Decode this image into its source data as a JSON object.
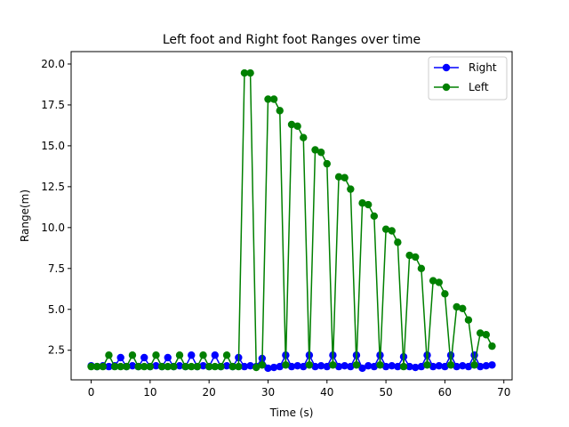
{
  "chart_data": {
    "type": "line",
    "title": "Left foot and Right foot Ranges over time",
    "xlabel": "Time (s)",
    "ylabel": "Range(m)",
    "xlim": [
      -3.4,
      71.4
    ],
    "ylim": [
      0.69,
      20.76
    ],
    "xticks": [
      0,
      10,
      20,
      30,
      40,
      50,
      60,
      70
    ],
    "yticks": [
      2.5,
      5.0,
      7.5,
      10.0,
      12.5,
      15.0,
      17.5,
      20.0
    ],
    "xtick_labels": [
      "0",
      "10",
      "20",
      "30",
      "40",
      "50",
      "60",
      "70"
    ],
    "ytick_labels": [
      "2.5",
      "5.0",
      "7.5",
      "10.0",
      "12.5",
      "15.0",
      "17.5",
      "20.0"
    ],
    "legend_position": "top-right",
    "grid": false,
    "series": [
      {
        "name": "Right",
        "color": "#0000ff",
        "x": [
          0,
          1,
          2,
          3,
          4,
          5,
          6,
          7,
          8,
          9,
          10,
          11,
          12,
          13,
          14,
          15,
          16,
          17,
          18,
          19,
          20,
          21,
          22,
          23,
          24,
          25,
          26,
          27,
          28,
          29,
          30,
          31,
          32,
          33,
          34,
          35,
          36,
          37,
          38,
          39,
          40,
          41,
          42,
          43,
          44,
          45,
          46,
          47,
          48,
          49,
          50,
          51,
          52,
          53,
          54,
          55,
          56,
          57,
          58,
          59,
          60,
          61,
          62,
          63,
          64,
          65,
          66,
          67,
          68
        ],
        "y": [
          1.55,
          1.5,
          1.55,
          1.5,
          1.55,
          2.05,
          1.5,
          1.55,
          1.5,
          2.05,
          1.5,
          1.55,
          1.5,
          2.05,
          1.5,
          1.55,
          1.5,
          2.2,
          1.5,
          1.55,
          1.5,
          2.2,
          1.5,
          1.55,
          1.5,
          2.05,
          1.5,
          1.55,
          1.5,
          2.0,
          1.4,
          1.45,
          1.5,
          2.2,
          1.5,
          1.55,
          1.5,
          2.2,
          1.5,
          1.55,
          1.5,
          2.2,
          1.5,
          1.55,
          1.5,
          2.2,
          1.4,
          1.55,
          1.5,
          2.2,
          1.5,
          1.55,
          1.5,
          2.1,
          1.5,
          1.45,
          1.5,
          2.2,
          1.5,
          1.55,
          1.5,
          2.2,
          1.5,
          1.55,
          1.5,
          2.2,
          1.5,
          1.55,
          1.6
        ]
      },
      {
        "name": "Left",
        "color": "#008000",
        "x": [
          0,
          1,
          2,
          3,
          4,
          5,
          6,
          7,
          8,
          9,
          10,
          11,
          12,
          13,
          14,
          15,
          16,
          17,
          18,
          19,
          20,
          21,
          22,
          23,
          24,
          25,
          26,
          27,
          28,
          29,
          30,
          31,
          32,
          33,
          34,
          35,
          36,
          37,
          38,
          39,
          40,
          41,
          42,
          43,
          44,
          45,
          46,
          47,
          48,
          49,
          50,
          51,
          52,
          53,
          54,
          55,
          56,
          57,
          58,
          59,
          60,
          61,
          62,
          63,
          64,
          65,
          66,
          67,
          68
        ],
        "y": [
          1.5,
          1.5,
          1.5,
          2.2,
          1.5,
          1.5,
          1.5,
          2.2,
          1.5,
          1.5,
          1.5,
          2.2,
          1.5,
          1.5,
          1.5,
          2.2,
          1.5,
          1.5,
          1.5,
          2.2,
          1.5,
          1.5,
          1.5,
          2.2,
          1.5,
          1.5,
          19.45,
          19.45,
          1.45,
          1.6,
          17.85,
          17.85,
          17.15,
          1.6,
          16.3,
          16.2,
          15.5,
          1.6,
          14.75,
          14.6,
          13.9,
          1.6,
          13.1,
          13.05,
          12.35,
          1.6,
          11.5,
          11.4,
          10.7,
          1.6,
          9.9,
          9.8,
          9.1,
          1.5,
          8.3,
          8.2,
          7.5,
          1.6,
          6.75,
          6.65,
          5.95,
          1.6,
          5.15,
          5.05,
          4.35,
          1.6,
          3.55,
          3.45,
          2.75
        ]
      }
    ]
  }
}
